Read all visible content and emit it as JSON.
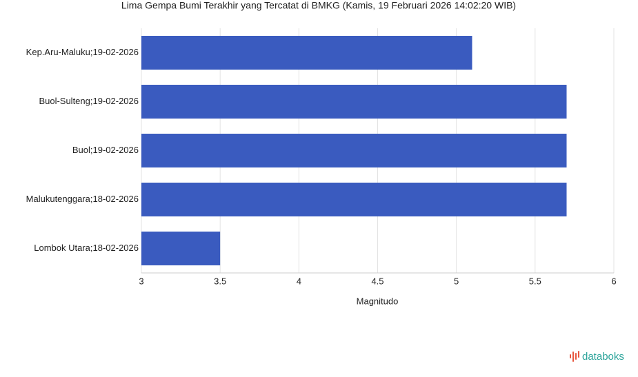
{
  "chart_data": {
    "type": "bar",
    "orientation": "horizontal",
    "title": "Lima Gempa Bumi Terakhir yang Tercatat di BMKG (Kamis, 19 Februari 2026 14:02:20 WIB)",
    "categories": [
      "Kep.Aru-Maluku;19-02-2026",
      "Buol-Sulteng;19-02-2026",
      "Buol;19-02-2026",
      "Malukutenggara;18-02-2026",
      "Lombok Utara;18-02-2026"
    ],
    "values": [
      5.1,
      5.7,
      5.7,
      5.7,
      3.5
    ],
    "color": "#3a5bbf",
    "x_label": "Magnitudo",
    "xlim": [
      3,
      6
    ],
    "xticks": [
      3,
      3.5,
      4,
      4.5,
      5,
      5.5,
      6
    ],
    "grid": true,
    "brand": "databoks"
  }
}
